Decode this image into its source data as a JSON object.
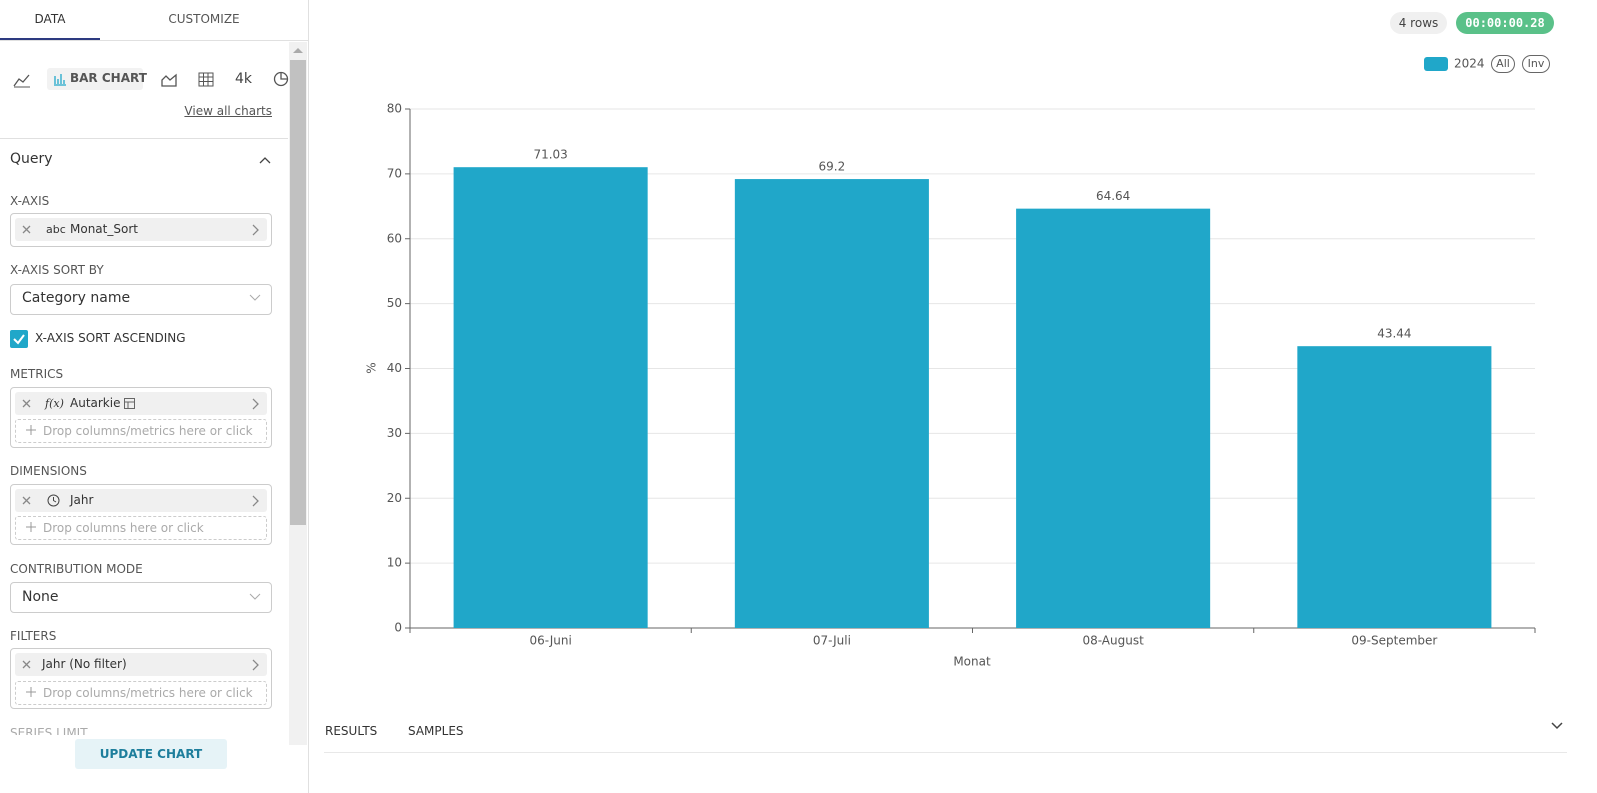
{
  "sidebar": {
    "tabs": [
      "DATA",
      "CUSTOMIZE"
    ],
    "chart_types": {
      "active": "BAR CHART",
      "big_number": "4k",
      "view_all": "View all charts"
    },
    "section": "Query",
    "x_axis": {
      "label": "X-AXIS",
      "type_icon": "abc",
      "column": "Monat_Sort"
    },
    "x_axis_sort_by": {
      "label": "X-AXIS SORT BY",
      "value": "Category name"
    },
    "x_axis_sort_ascending": "X-AXIS SORT ASCENDING",
    "metrics": {
      "label": "METRICS",
      "type_icon": "f(x)",
      "metric": "Autarkie",
      "placeholder": "Drop columns/metrics here or click"
    },
    "dimensions": {
      "label": "DIMENSIONS",
      "column": "Jahr",
      "placeholder": "Drop columns here or click"
    },
    "contribution_mode": {
      "label": "CONTRIBUTION MODE",
      "value": "None"
    },
    "filters": {
      "label": "FILTERS",
      "filter": "Jahr (No filter)",
      "placeholder": "Drop columns/metrics here or click"
    },
    "series_limit": "SERIES LIMIT",
    "update_button": "UPDATE CHART"
  },
  "header": {
    "rows": "4 rows",
    "timer": "00:00:00.28",
    "legend_buttons": [
      "All",
      "Inv"
    ]
  },
  "bottom_tabs": [
    "RESULTS",
    "SAMPLES"
  ],
  "chart_data": {
    "type": "bar",
    "categories": [
      "06-Juni",
      "07-Juli",
      "08-August",
      "09-September"
    ],
    "series": [
      {
        "name": "2024",
        "color": "#20a7c9",
        "values": [
          71.03,
          69.2,
          64.64,
          43.44
        ]
      }
    ],
    "ylim": [
      0,
      80
    ],
    "yticks": [
      0,
      10,
      20,
      30,
      40,
      50,
      60,
      70,
      80
    ],
    "xlabel": "Monat",
    "ylabel": "%",
    "grid": true,
    "legend": "top-right"
  }
}
